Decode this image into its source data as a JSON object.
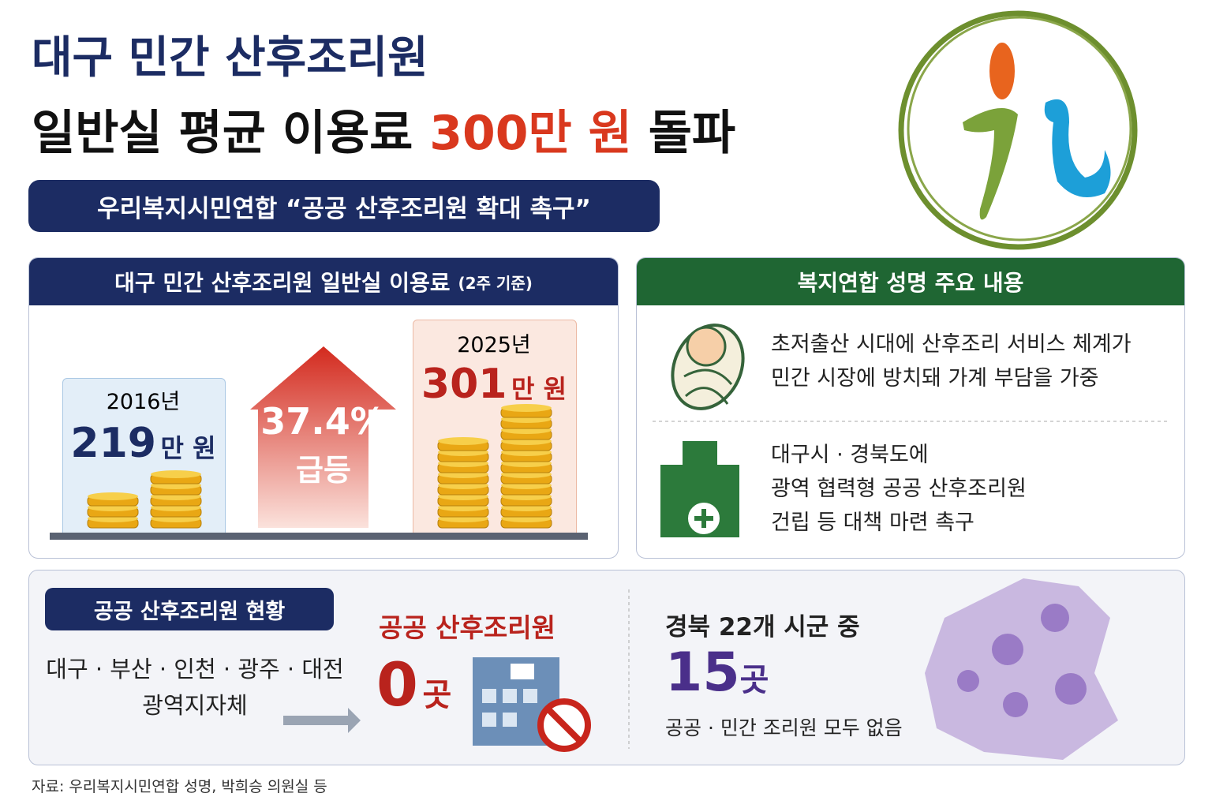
{
  "header": {
    "title_line1": "대구 민간 산후조리원",
    "title_line2_pre": "일반실 평균 이용료",
    "title_line2_highlight": "300만 원",
    "title_line2_post": "돌파",
    "subtitle": "우리복지시민연합 “공공 산후조리원 확대 촉구”"
  },
  "fee_panel": {
    "title": "대구 민간 산후조리원 일반실 이용료",
    "title_note": "(2주 기준)",
    "before": {
      "year": "2016년",
      "amount": "219",
      "unit": "만 원"
    },
    "increase": {
      "rate": "37.4%",
      "label": "급등"
    },
    "after": {
      "year": "2025년",
      "amount": "301",
      "unit": "만 원"
    }
  },
  "statement_panel": {
    "title": "복지연합 성명 주요 내용",
    "items": [
      {
        "lines": [
          "초저출산 시대에 산후조리 서비스 체계가",
          "민간 시장에 방치돼 가계 부담을 가중"
        ]
      },
      {
        "lines": [
          "대구시 · 경북도에",
          "광역 협력형 공공 산후조리원",
          "건립 등 대책 마련 촉구"
        ]
      }
    ]
  },
  "public_panel": {
    "badge": "공공 산후조리원 현황",
    "regions": [
      "대구 · 부산 · 인천 · 광주 · 대전",
      "광역지자체"
    ],
    "public_label": "공공 산후조리원",
    "public_count": "0",
    "public_unit": "곳",
    "gb_label": "경북 22개 시군 중",
    "gb_count": "15",
    "gb_unit": "곳",
    "gb_note": "공공 · 민간 조리원 모두 없음"
  },
  "source": "자료: 우리복지시민연합 성명, 박희승 의원실 등"
}
